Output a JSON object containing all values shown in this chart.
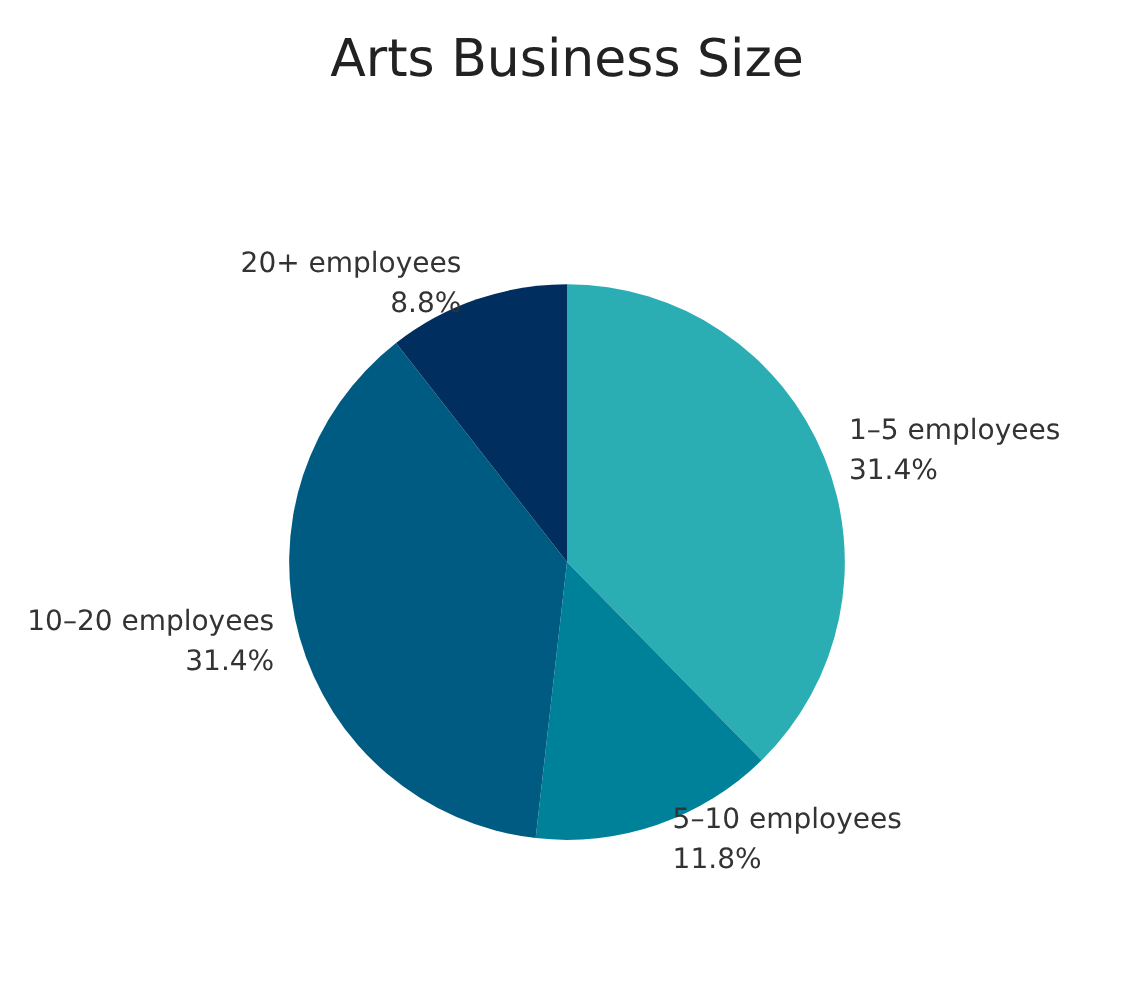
{
  "chart_data": {
    "type": "pie",
    "title": "Arts Business Size",
    "categories": [
      "1–5 employees",
      "5–10 employees",
      "10–20 employees",
      "20+ employees"
    ],
    "values": [
      31.4,
      11.8,
      31.4,
      8.8
    ],
    "value_labels": [
      "31.4%",
      "11.8%",
      "31.4%",
      "8.8%"
    ],
    "colors": [
      "#2aadb3",
      "#00819a",
      "#005b82",
      "#002f5f"
    ],
    "legend": false
  }
}
